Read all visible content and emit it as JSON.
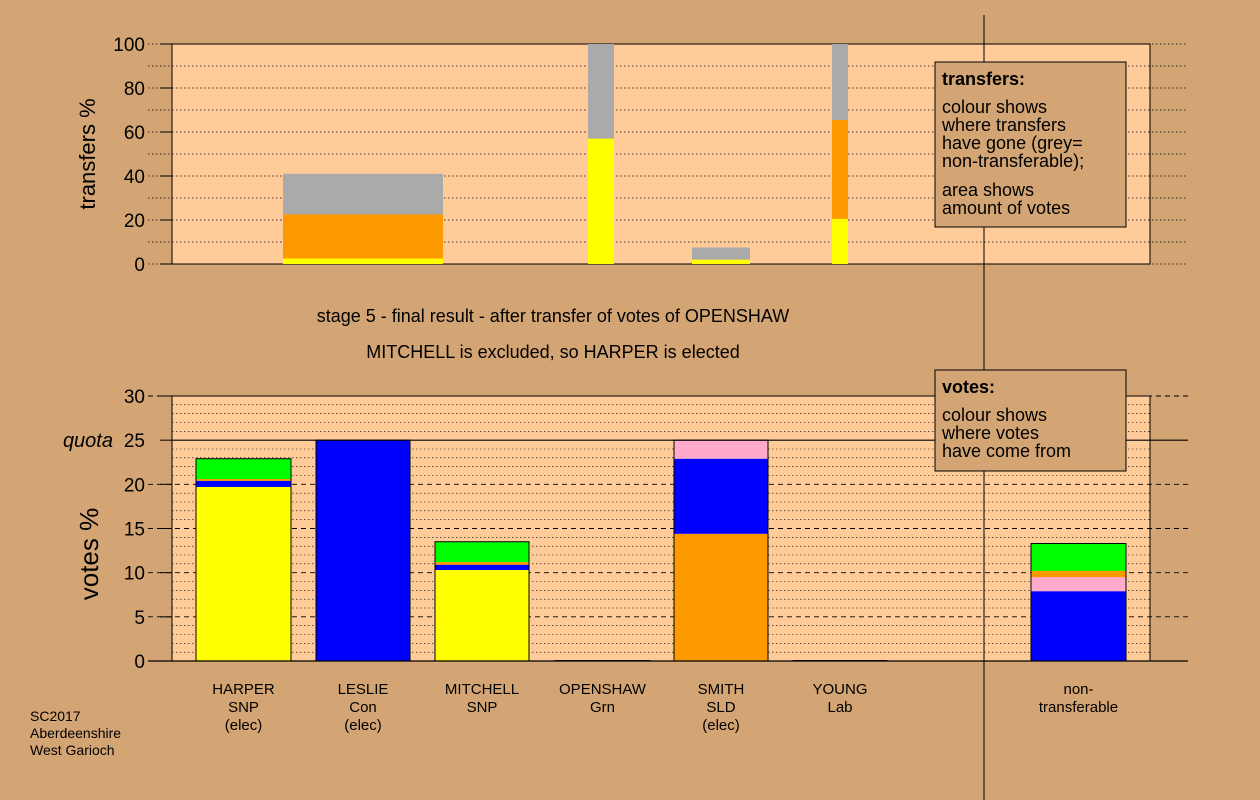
{
  "colors": {
    "page_bg": "#d4a574",
    "plot_bg": "#ffcc99",
    "grey": "#aaaaaa",
    "orange": "#ff9900",
    "yellow": "#ffff00",
    "blue": "#0000ff",
    "green": "#00ff00",
    "pink": "#ffaacc"
  },
  "chart_data": [
    {
      "type": "bar",
      "stacked": true,
      "ylabel": "transfers %",
      "ylim": [
        0,
        100
      ],
      "yticks": [
        "0",
        "20",
        "40",
        "60",
        "80",
        "100"
      ],
      "note": {
        "title": "transfers:",
        "lines": [
          "colour shows",
          "where transfers",
          "have gone (grey=",
          "non-transferable);"
        ],
        "lines2": [
          "area shows",
          "amount of votes"
        ]
      },
      "bars": [
        {
          "name": "HARPER",
          "segments": [
            {
              "color": "yellow",
              "value": 2.5
            },
            {
              "color": "orange",
              "value": 20
            },
            {
              "color": "grey",
              "value": 18.5
            }
          ]
        },
        {
          "name": "OPENSHAW",
          "segments": [
            {
              "color": "yellow",
              "value": 57
            },
            {
              "color": "grey",
              "value": 43
            }
          ]
        },
        {
          "name": "SMITH",
          "segments": [
            {
              "color": "yellow",
              "value": 2
            },
            {
              "color": "grey",
              "value": 5.5
            }
          ]
        },
        {
          "name": "YOUNG",
          "segments": [
            {
              "color": "yellow",
              "value": 20.5
            },
            {
              "color": "orange",
              "value": 45
            },
            {
              "color": "grey",
              "value": 34.5
            }
          ]
        }
      ]
    },
    {
      "type": "bar",
      "stacked": true,
      "title": "stage 5 - final result - after transfer of votes of OPENSHAW",
      "subtitle": "MITCHELL is excluded, so HARPER is elected",
      "ylabel": "votes %",
      "ylim": [
        0,
        30
      ],
      "yticks": [
        "0",
        "5",
        "10",
        "15",
        "20",
        "25",
        "30"
      ],
      "quota": 25,
      "quota_label": "quota",
      "note": {
        "title": "votes:",
        "lines": [
          "colour shows",
          "where votes",
          "have come from"
        ]
      },
      "categories": [
        {
          "label": [
            "HARPER",
            "SNP",
            "(elec)"
          ]
        },
        {
          "label": [
            "LESLIE",
            "Con",
            "(elec)"
          ]
        },
        {
          "label": [
            "MITCHELL",
            "SNP"
          ]
        },
        {
          "label": [
            "OPENSHAW",
            "Grn"
          ]
        },
        {
          "label": [
            "SMITH",
            "SLD",
            "(elec)"
          ]
        },
        {
          "label": [
            "YOUNG",
            "Lab"
          ]
        },
        {
          "label": [
            "non-",
            "transferable"
          ]
        }
      ],
      "bars": [
        {
          "name": "HARPER",
          "segments": [
            {
              "color": "yellow",
              "value": 19.7
            },
            {
              "color": "blue",
              "value": 0.7
            },
            {
              "color": "orange",
              "value": 0.2
            },
            {
              "color": "green",
              "value": 2.3
            }
          ]
        },
        {
          "name": "LESLIE",
          "segments": [
            {
              "color": "blue",
              "value": 25
            }
          ]
        },
        {
          "name": "MITCHELL",
          "segments": [
            {
              "color": "yellow",
              "value": 10.3
            },
            {
              "color": "blue",
              "value": 0.6
            },
            {
              "color": "orange",
              "value": 0.3
            },
            {
              "color": "green",
              "value": 2.3
            }
          ]
        },
        {
          "name": "OPENSHAW",
          "segments": [
            {
              "color": "green",
              "value": 0.05
            }
          ]
        },
        {
          "name": "SMITH",
          "segments": [
            {
              "color": "orange",
              "value": 14.4
            },
            {
              "color": "blue",
              "value": 8.5
            },
            {
              "color": "pink",
              "value": 2.1
            }
          ]
        },
        {
          "name": "YOUNG",
          "segments": [
            {
              "color": "green",
              "value": 0.05
            }
          ]
        },
        {
          "name": "non-transferable",
          "segments": [
            {
              "color": "blue",
              "value": 7.9
            },
            {
              "color": "pink",
              "value": 1.6
            },
            {
              "color": "orange",
              "value": 0.7
            },
            {
              "color": "green",
              "value": 3.1
            }
          ]
        }
      ]
    }
  ],
  "footer": {
    "lines": [
      "SC2017",
      "Aberdeenshire",
      "West Garioch"
    ]
  }
}
